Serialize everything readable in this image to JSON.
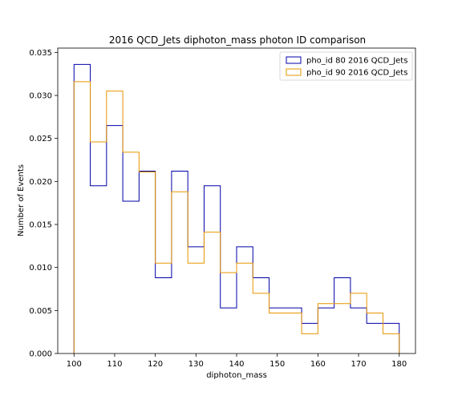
{
  "chart_data": {
    "type": "histogram",
    "title": "2016 QCD_Jets diphoton_mass photon ID comparison",
    "xlabel": "diphoton_mass",
    "ylabel": "Number of Events",
    "xlim": [
      96,
      184
    ],
    "ylim": [
      0,
      0.0355
    ],
    "xticks": [
      100,
      110,
      120,
      130,
      140,
      150,
      160,
      170,
      180
    ],
    "yticks": [
      0.0,
      0.005,
      0.01,
      0.015,
      0.02,
      0.025,
      0.03,
      0.035
    ],
    "ytick_labels": [
      "0.000",
      "0.005",
      "0.010",
      "0.015",
      "0.020",
      "0.025",
      "0.030",
      "0.035"
    ],
    "bin_edges": [
      100,
      104,
      108,
      112,
      116,
      120,
      124,
      128,
      132,
      136,
      140,
      144,
      148,
      152,
      156,
      160,
      164,
      168,
      172,
      176,
      180
    ],
    "legend_position": "upper right",
    "series": [
      {
        "name": "pho_id 80 2016 QCD_Jets",
        "color": "#0000a8",
        "values": [
          0.0336,
          0.0195,
          0.0265,
          0.0177,
          0.0212,
          0.0088,
          0.0212,
          0.0124,
          0.0195,
          0.0053,
          0.0124,
          0.0088,
          0.0053,
          0.0053,
          0.0035,
          0.0053,
          0.0088,
          0.0053,
          0.0035,
          0.0035
        ]
      },
      {
        "name": "pho_id 90 2016 QCD_Jets",
        "color": "#e69500",
        "values": [
          0.0316,
          0.0246,
          0.0305,
          0.0234,
          0.0211,
          0.0105,
          0.0188,
          0.0105,
          0.0141,
          0.0094,
          0.0105,
          0.007,
          0.0047,
          0.0047,
          0.0023,
          0.0058,
          0.0058,
          0.007,
          0.0047,
          0.0023
        ]
      }
    ]
  }
}
